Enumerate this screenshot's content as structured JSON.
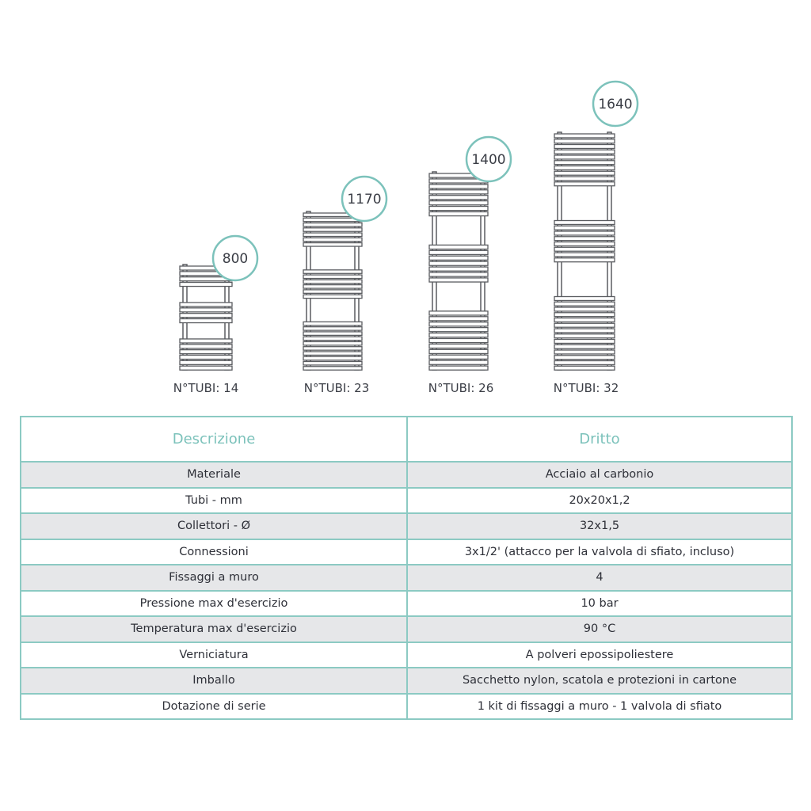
{
  "radiators": [
    {
      "height_label": "800",
      "tubes_label": "N°TUBI: 14",
      "tubes": 14
    },
    {
      "height_label": "1170",
      "tubes_label": "N°TUBI: 23",
      "tubes": 23
    },
    {
      "height_label": "1400",
      "tubes_label": "N°TUBI: 26",
      "tubes": 26
    },
    {
      "height_label": "1640",
      "tubes_label": "N°TUBI: 32",
      "tubes": 32
    }
  ],
  "colors": {
    "accent": "#7cc2bb",
    "row_alt": "#e6e7e9",
    "radiator": "#5a5c60"
  },
  "table": {
    "headers": [
      "Descrizione",
      "Dritto"
    ],
    "rows": [
      [
        "Materiale",
        "Acciaio al carbonio"
      ],
      [
        "Tubi - mm",
        "20x20x1,2"
      ],
      [
        "Collettori - Ø",
        "32x1,5"
      ],
      [
        "Connessioni",
        "3x1/2' (attacco per la valvola di sfiato, incluso)"
      ],
      [
        "Fissaggi a muro",
        "4"
      ],
      [
        "Pressione max d'esercizio",
        "10 bar"
      ],
      [
        "Temperatura max d'esercizio",
        "90 °C"
      ],
      [
        "Verniciatura",
        "A polveri epossipoliestere"
      ],
      [
        "Imballo",
        "Sacchetto nylon, scatola e protezioni in cartone"
      ],
      [
        "Dotazione di serie",
        "1 kit di fissaggi a muro - 1 valvola di sfiato"
      ]
    ]
  }
}
